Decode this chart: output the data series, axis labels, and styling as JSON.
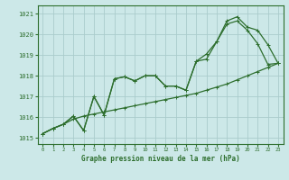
{
  "title": "Graphe pression niveau de la mer (hPa)",
  "bg_color": "#cce8e8",
  "grid_color": "#aacccc",
  "line_color": "#2d6e2d",
  "xlim": [
    -0.5,
    23.5
  ],
  "ylim": [
    1014.7,
    1021.4
  ],
  "yticks": [
    1015,
    1016,
    1017,
    1018,
    1019,
    1020,
    1021
  ],
  "xticks": [
    0,
    1,
    2,
    3,
    4,
    5,
    6,
    7,
    8,
    9,
    10,
    11,
    12,
    13,
    14,
    15,
    16,
    17,
    18,
    19,
    20,
    21,
    22,
    23
  ],
  "series1_y": [
    1015.2,
    1015.45,
    1015.65,
    1015.9,
    1016.05,
    1016.15,
    1016.25,
    1016.35,
    1016.45,
    1016.55,
    1016.65,
    1016.75,
    1016.85,
    1016.95,
    1017.05,
    1017.15,
    1017.3,
    1017.45,
    1017.6,
    1017.8,
    1018.0,
    1018.2,
    1018.4,
    1018.6
  ],
  "series2_y": [
    1015.2,
    1015.45,
    1015.65,
    1016.05,
    1015.35,
    1017.0,
    1016.1,
    1017.85,
    1017.95,
    1017.75,
    1018.0,
    1018.0,
    1017.5,
    1017.5,
    1017.3,
    1018.7,
    1018.8,
    1019.65,
    1020.5,
    1020.65,
    1020.2,
    1019.55,
    1018.55,
    1018.6
  ],
  "series3_y": [
    1015.2,
    1015.45,
    1015.65,
    1016.05,
    1015.35,
    1017.0,
    1016.1,
    1017.85,
    1017.95,
    1017.75,
    1018.0,
    1018.0,
    1017.5,
    1017.5,
    1017.3,
    1018.7,
    1019.05,
    1019.65,
    1020.65,
    1020.85,
    1020.35,
    1020.2,
    1019.5,
    1018.6
  ]
}
